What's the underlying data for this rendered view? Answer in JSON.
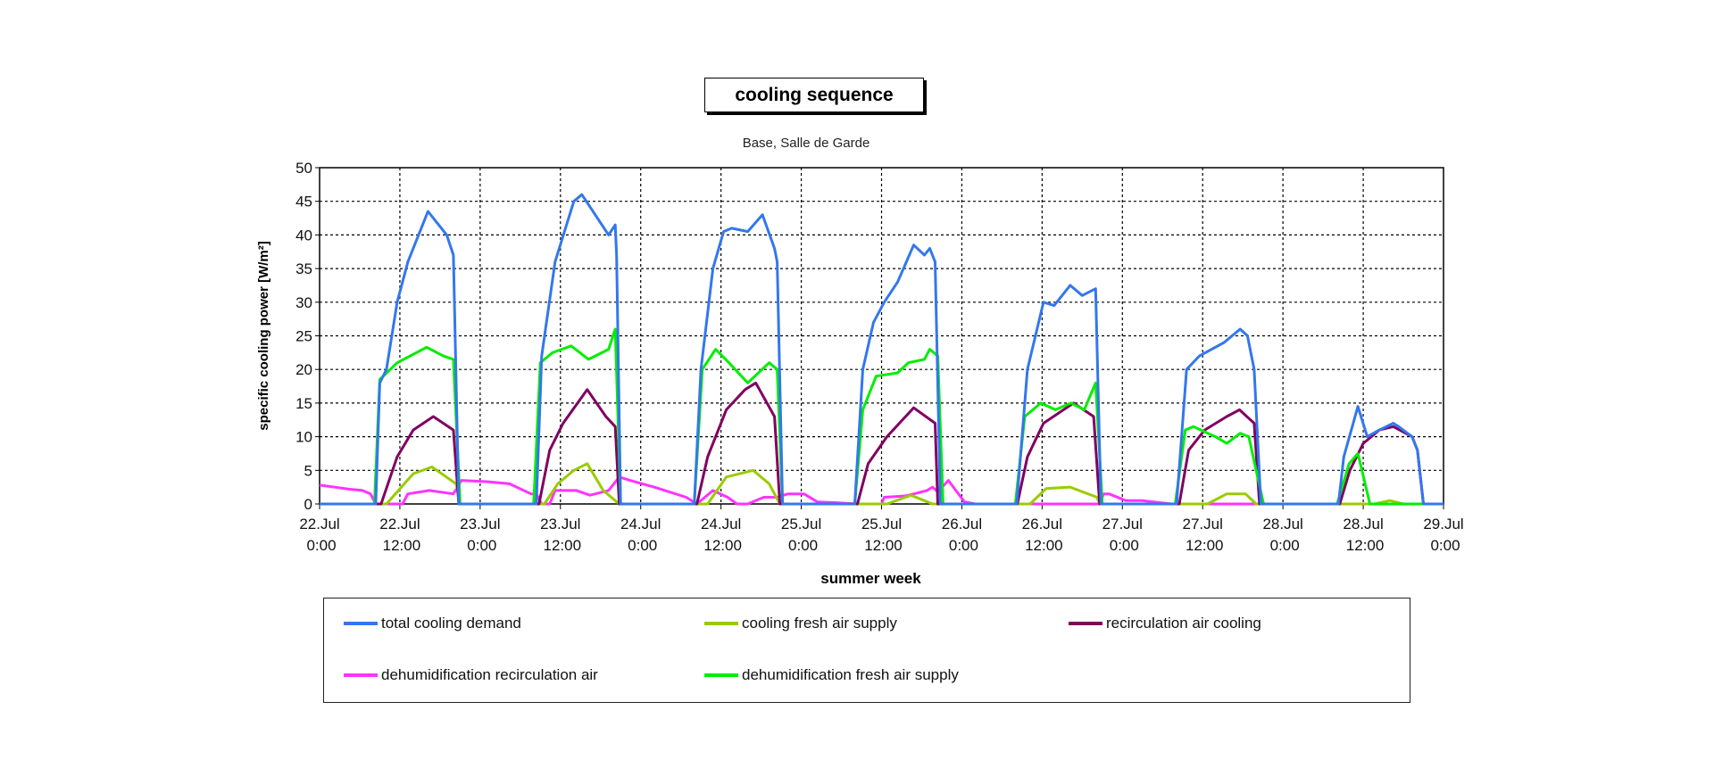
{
  "chart_data": {
    "type": "line",
    "title": "cooling sequence",
    "subtitle": "Base, Salle de Garde",
    "xlabel": "summer week",
    "ylabel": "specific cooling power [W/m²]",
    "x_unit": "hours since 22.Jul 0:00",
    "xlim": [
      0,
      168
    ],
    "ylim": [
      0,
      50
    ],
    "grid": true,
    "legend_position": "bottom",
    "yticks": [
      "0",
      "5",
      "10",
      "15",
      "20",
      "25",
      "30",
      "35",
      "40",
      "45",
      "50"
    ],
    "xticks": [
      [
        "22.Jul",
        "0:00"
      ],
      [
        "22.Jul",
        "12:00"
      ],
      [
        "23.Jul",
        "0:00"
      ],
      [
        "23.Jul",
        "12:00"
      ],
      [
        "24.Jul",
        "0:00"
      ],
      [
        "24.Jul",
        "12:00"
      ],
      [
        "25.Jul",
        "0:00"
      ],
      [
        "25.Jul",
        "12:00"
      ],
      [
        "26.Jul",
        "0:00"
      ],
      [
        "26.Jul",
        "12:00"
      ],
      [
        "27.Jul",
        "0:00"
      ],
      [
        "27.Jul",
        "12:00"
      ],
      [
        "28.Jul",
        "0:00"
      ],
      [
        "28.Jul",
        "12:00"
      ],
      [
        "29.Jul",
        "0:00"
      ]
    ],
    "series": [
      {
        "name": "dehumidification recirculation air",
        "color": "#ff33ff",
        "points": [
          [
            0,
            2.8
          ],
          [
            4.4,
            2.2
          ],
          [
            6.4,
            2
          ],
          [
            7.6,
            1.5
          ],
          [
            8.4,
            0
          ],
          [
            12.4,
            0
          ],
          [
            13.2,
            1.5
          ],
          [
            16.4,
            2
          ],
          [
            20,
            1.5
          ],
          [
            21.2,
            3.5
          ],
          [
            25.2,
            3.3
          ],
          [
            28.4,
            3
          ],
          [
            31.6,
            1.5
          ],
          [
            32.4,
            1.5
          ],
          [
            33.2,
            0
          ],
          [
            34.4,
            0
          ],
          [
            35.2,
            2
          ],
          [
            38.4,
            2
          ],
          [
            40.4,
            1.3
          ],
          [
            43.2,
            2
          ],
          [
            44.8,
            4
          ],
          [
            46.4,
            3.5
          ],
          [
            50,
            2.5
          ],
          [
            54.8,
            1
          ],
          [
            55.6,
            0.5
          ],
          [
            56.4,
            0
          ],
          [
            58.8,
            2
          ],
          [
            61,
            1
          ],
          [
            62.4,
            0
          ],
          [
            64,
            0
          ],
          [
            66.4,
            1
          ],
          [
            68.4,
            1
          ],
          [
            70,
            1.5
          ],
          [
            72.4,
            1.5
          ],
          [
            74.4,
            0.3
          ],
          [
            77,
            0.2
          ],
          [
            80.4,
            0
          ],
          [
            84,
            0
          ],
          [
            84.4,
            1
          ],
          [
            87.6,
            1.2
          ],
          [
            90.8,
            2
          ],
          [
            91.6,
            2.5
          ],
          [
            92.4,
            1.8
          ],
          [
            94,
            3.5
          ],
          [
            96.4,
            0.3
          ],
          [
            98,
            0
          ],
          [
            116.6,
            0
          ],
          [
            117.2,
            1.5
          ],
          [
            118,
            1.5
          ],
          [
            120.5,
            0.5
          ],
          [
            123,
            0.5
          ],
          [
            125.5,
            0.2
          ],
          [
            127.4,
            0
          ],
          [
            168,
            0
          ]
        ]
      },
      {
        "name": "cooling fresh air supply",
        "color": "#99cc00",
        "points": [
          [
            0,
            0
          ],
          [
            10,
            0
          ],
          [
            14,
            4.5
          ],
          [
            16.8,
            5.5
          ],
          [
            20.4,
            3
          ],
          [
            21,
            0
          ],
          [
            33.6,
            0
          ],
          [
            35.6,
            3
          ],
          [
            38,
            5
          ],
          [
            40,
            6
          ],
          [
            42.4,
            2
          ],
          [
            44.8,
            0
          ],
          [
            58,
            0
          ],
          [
            60.8,
            4
          ],
          [
            64.8,
            5
          ],
          [
            67.2,
            3
          ],
          [
            68.8,
            0
          ],
          [
            84.8,
            0
          ],
          [
            88.4,
            1.3
          ],
          [
            91.6,
            0
          ],
          [
            106.2,
            0
          ],
          [
            108.6,
            2.3
          ],
          [
            112.2,
            2.5
          ],
          [
            116.2,
            1
          ],
          [
            116.6,
            0
          ],
          [
            132.7,
            0
          ],
          [
            135.6,
            1.5
          ],
          [
            138.4,
            1.5
          ],
          [
            140,
            0
          ],
          [
            157.6,
            0
          ],
          [
            160,
            0.5
          ],
          [
            162,
            0
          ],
          [
            168,
            0
          ]
        ]
      },
      {
        "name": "recirculation air cooling",
        "color": "#800060",
        "points": [
          [
            0,
            0
          ],
          [
            9.2,
            0
          ],
          [
            11.6,
            7
          ],
          [
            14,
            11
          ],
          [
            17,
            13
          ],
          [
            20,
            11
          ],
          [
            20.8,
            0
          ],
          [
            32.8,
            0
          ],
          [
            34.4,
            8
          ],
          [
            36.4,
            12
          ],
          [
            40,
            17
          ],
          [
            42.8,
            13
          ],
          [
            44.2,
            11.5
          ],
          [
            44.8,
            0
          ],
          [
            56.4,
            0
          ],
          [
            58,
            7
          ],
          [
            60.8,
            14
          ],
          [
            63.6,
            17
          ],
          [
            65.2,
            18
          ],
          [
            68,
            13
          ],
          [
            68.8,
            0
          ],
          [
            80.4,
            0
          ],
          [
            82,
            6
          ],
          [
            84.8,
            10
          ],
          [
            88.8,
            14.3
          ],
          [
            92,
            12
          ],
          [
            92.4,
            0
          ],
          [
            104.3,
            0
          ],
          [
            105.8,
            7
          ],
          [
            108.2,
            12
          ],
          [
            112.7,
            15
          ],
          [
            115.7,
            13
          ],
          [
            116.6,
            0
          ],
          [
            128.5,
            0
          ],
          [
            129.9,
            8
          ],
          [
            132.3,
            11
          ],
          [
            135.6,
            13
          ],
          [
            137.5,
            14
          ],
          [
            139.7,
            12
          ],
          [
            140.5,
            0
          ],
          [
            152.5,
            0
          ],
          [
            154,
            5
          ],
          [
            156,
            9
          ],
          [
            158.4,
            11
          ],
          [
            160.5,
            11.5
          ],
          [
            163.3,
            10
          ],
          [
            164.1,
            8
          ],
          [
            165,
            0
          ],
          [
            168,
            0
          ]
        ]
      },
      {
        "name": "dehumidification fresh air supply",
        "color": "#00ee00",
        "points": [
          [
            0,
            0
          ],
          [
            8.2,
            0
          ],
          [
            9,
            18.5
          ],
          [
            11.6,
            21
          ],
          [
            16,
            23.3
          ],
          [
            18.5,
            22
          ],
          [
            20,
            21.5
          ],
          [
            21,
            0
          ],
          [
            32,
            0
          ],
          [
            33,
            21
          ],
          [
            34.8,
            22.5
          ],
          [
            37.6,
            23.5
          ],
          [
            40.2,
            21.5
          ],
          [
            43.2,
            23
          ],
          [
            44.2,
            26
          ],
          [
            45,
            0
          ],
          [
            56,
            0
          ],
          [
            57.2,
            20
          ],
          [
            59.2,
            23
          ],
          [
            61.2,
            21
          ],
          [
            64,
            18
          ],
          [
            67.2,
            21
          ],
          [
            68.4,
            20
          ],
          [
            69.2,
            0
          ],
          [
            80,
            0
          ],
          [
            81.2,
            14
          ],
          [
            83.2,
            19
          ],
          [
            86.4,
            19.5
          ],
          [
            88,
            21
          ],
          [
            90.4,
            21.5
          ],
          [
            91.2,
            23
          ],
          [
            92.4,
            22
          ],
          [
            93.2,
            0
          ],
          [
            104,
            0
          ],
          [
            105.4,
            13
          ],
          [
            107.8,
            15
          ],
          [
            110,
            14
          ],
          [
            112.3,
            15
          ],
          [
            114.3,
            14
          ],
          [
            116,
            18
          ],
          [
            117,
            0
          ],
          [
            127.9,
            0
          ],
          [
            129.4,
            11
          ],
          [
            130.6,
            11.5
          ],
          [
            133.9,
            10
          ],
          [
            135.6,
            9
          ],
          [
            137.6,
            10.5
          ],
          [
            138.9,
            10
          ],
          [
            141.1,
            0
          ],
          [
            152.1,
            0
          ],
          [
            153.9,
            6
          ],
          [
            155.2,
            7.5
          ],
          [
            157,
            0
          ],
          [
            168,
            0
          ]
        ]
      },
      {
        "name": "total cooling demand",
        "color": "#3377ee",
        "points": [
          [
            0,
            0
          ],
          [
            8.4,
            0
          ],
          [
            9,
            18
          ],
          [
            10,
            20
          ],
          [
            11.6,
            30
          ],
          [
            13.2,
            36
          ],
          [
            16.2,
            43.5
          ],
          [
            19,
            40
          ],
          [
            20,
            37
          ],
          [
            20.8,
            0
          ],
          [
            32.4,
            0
          ],
          [
            33.2,
            22
          ],
          [
            35.2,
            36
          ],
          [
            38,
            45
          ],
          [
            39.2,
            46
          ],
          [
            41.2,
            43
          ],
          [
            43.2,
            40
          ],
          [
            44.2,
            41.5
          ],
          [
            44.4,
            37
          ],
          [
            45,
            0
          ],
          [
            56,
            0
          ],
          [
            57,
            20
          ],
          [
            58.8,
            35
          ],
          [
            60.4,
            40.5
          ],
          [
            61.6,
            41
          ],
          [
            64,
            40.5
          ],
          [
            66.2,
            43
          ],
          [
            68,
            38
          ],
          [
            68.4,
            36
          ],
          [
            69.2,
            0
          ],
          [
            80,
            0
          ],
          [
            81.2,
            20
          ],
          [
            82.8,
            27
          ],
          [
            84.4,
            30
          ],
          [
            86.4,
            33
          ],
          [
            88.8,
            38.5
          ],
          [
            90.4,
            37
          ],
          [
            91.2,
            38
          ],
          [
            92,
            36
          ],
          [
            92.8,
            0
          ],
          [
            104.2,
            0
          ],
          [
            105.8,
            20
          ],
          [
            108.2,
            30
          ],
          [
            109.8,
            29.5
          ],
          [
            112.2,
            32.5
          ],
          [
            114,
            31
          ],
          [
            116,
            32
          ],
          [
            116.8,
            0
          ],
          [
            128.1,
            0
          ],
          [
            129.6,
            20
          ],
          [
            131.5,
            22
          ],
          [
            135.2,
            24
          ],
          [
            137.6,
            26
          ],
          [
            138.7,
            25
          ],
          [
            139.7,
            20
          ],
          [
            140.7,
            0
          ],
          [
            152.3,
            0
          ],
          [
            153.1,
            7
          ],
          [
            155.2,
            14.5
          ],
          [
            156.6,
            10
          ],
          [
            158.4,
            11
          ],
          [
            160.5,
            12
          ],
          [
            161.3,
            11.5
          ],
          [
            163.3,
            10
          ],
          [
            164.1,
            8
          ],
          [
            165,
            0
          ],
          [
            168,
            0
          ]
        ]
      }
    ],
    "legend": [
      "total cooling demand",
      "cooling fresh air supply",
      "recirculation air cooling",
      "dehumidification recirculation air",
      "dehumidification fresh air supply"
    ]
  }
}
